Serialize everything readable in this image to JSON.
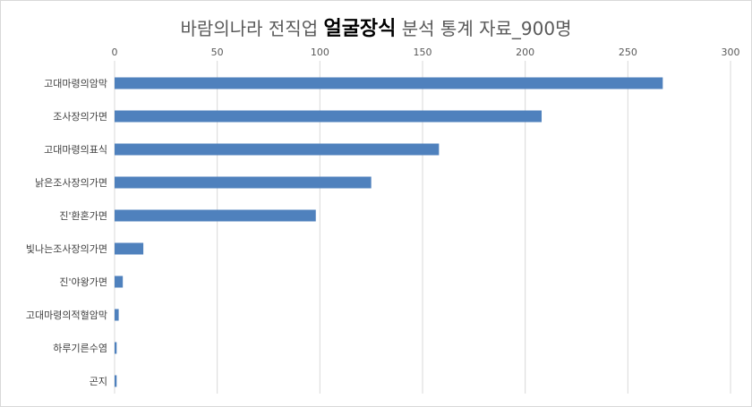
{
  "title": {
    "prefix": "바람의나라 전직업 ",
    "bold": "얼굴장식",
    "suffix": " 분석 통계 자료_900명"
  },
  "chart_data": {
    "type": "bar",
    "orientation": "horizontal",
    "title": "바람의나라 전직업 얼굴장식 분석 통계 자료_900명",
    "xlim": [
      0,
      300
    ],
    "x_ticks": [
      0,
      50,
      100,
      150,
      200,
      250,
      300
    ],
    "x_axis_position": "top",
    "grid": true,
    "color": "#4f81bd",
    "categories": [
      "고대마령의암막",
      "조사장의가면",
      "고대마령의표식",
      "낡은조사장의가면",
      "진'환혼가면",
      "빛나는조사장의가면",
      "진'야왕가면",
      "고대마령의적혈암막",
      "하루기른수염",
      "곤지"
    ],
    "values": [
      267,
      208,
      158,
      125,
      98,
      14,
      4,
      2,
      1,
      1
    ]
  }
}
